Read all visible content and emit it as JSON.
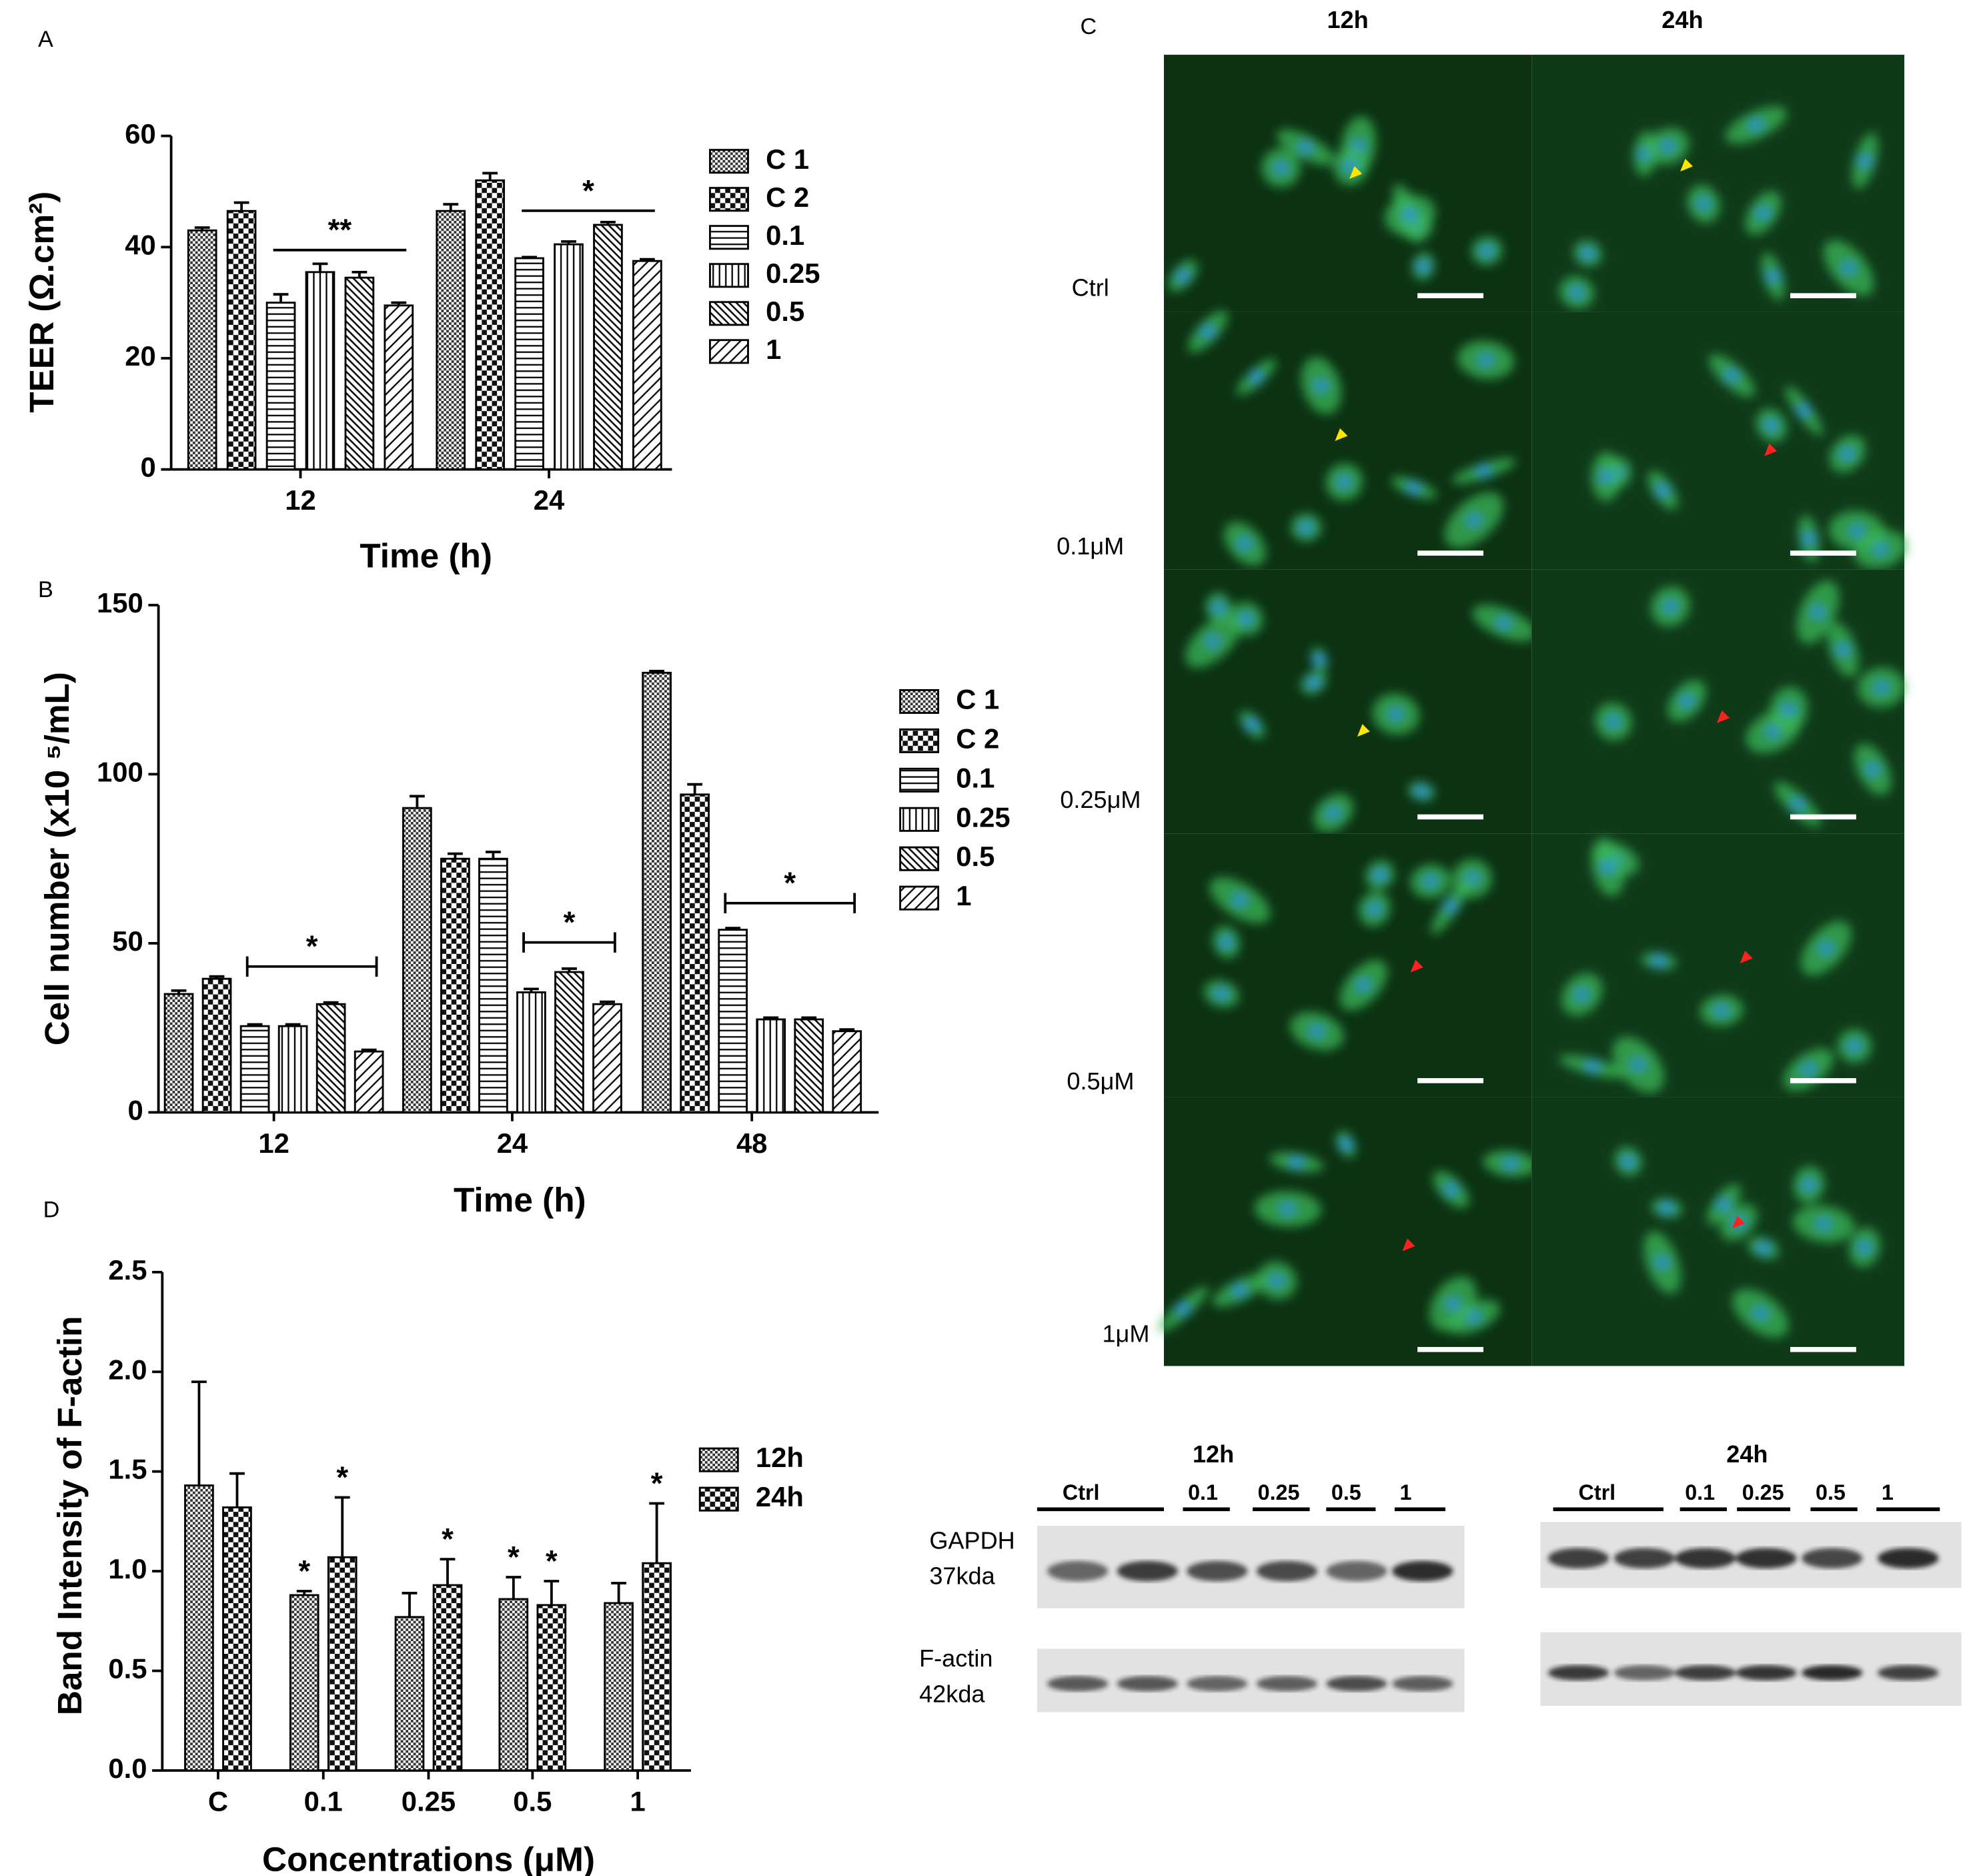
{
  "panel_labels": [
    "A",
    "B",
    "C",
    "D"
  ],
  "chart_data": [
    {
      "type": "bar",
      "xlabel": "Time (h)",
      "ylabel": "TEER (Ω.cm²)",
      "categories": [
        "12",
        "24"
      ],
      "series": [
        {
          "name": "C 1",
          "color": "#000000",
          "values": [
            43,
            46.5
          ],
          "errors": [
            0.5,
            1.2
          ]
        },
        {
          "name": "C 2",
          "color": "#000000",
          "values": [
            46.5,
            52
          ],
          "errors": [
            1.5,
            1.3
          ]
        },
        {
          "name": "0.1",
          "color": "#000000",
          "values": [
            30,
            38
          ],
          "errors": [
            1.5,
            0.2
          ]
        },
        {
          "name": "0.25",
          "color": "#000000",
          "values": [
            35.5,
            40.5
          ],
          "errors": [
            1.5,
            0.5
          ]
        },
        {
          "name": "0.5",
          "color": "#000000",
          "values": [
            34.5,
            44
          ],
          "errors": [
            1,
            0.5
          ]
        },
        {
          "name": "1",
          "color": "#000000",
          "values": [
            29.5,
            37.5
          ],
          "errors": [
            0.5,
            0.3
          ]
        }
      ],
      "group_annotations": [
        "**",
        "*"
      ],
      "ylim": [
        0,
        60
      ],
      "yticks": [
        0,
        20,
        40,
        60
      ]
    },
    {
      "type": "bar",
      "xlabel": "Time (h)",
      "ylabel": "Cell number (x10 ⁵/mL)",
      "categories": [
        "12",
        "24",
        "48"
      ],
      "series": [
        {
          "name": "C 1",
          "color": "#000000",
          "values": [
            35,
            90,
            130
          ],
          "errors": [
            1,
            3.5,
            0.5
          ]
        },
        {
          "name": "C 2",
          "color": "#000000",
          "values": [
            39.5,
            75,
            94
          ],
          "errors": [
            0.7,
            1.5,
            3
          ]
        },
        {
          "name": "0.1",
          "color": "#000000",
          "values": [
            25.5,
            75,
            54
          ],
          "errors": [
            0.5,
            2,
            0.5
          ]
        },
        {
          "name": "0.25",
          "color": "#000000",
          "values": [
            25.5,
            35.5,
            27.5
          ],
          "errors": [
            0.5,
            1,
            0.5
          ]
        },
        {
          "name": "0.5",
          "color": "#000000",
          "values": [
            32,
            41.5,
            27.5
          ],
          "errors": [
            0.5,
            1,
            0.5
          ]
        },
        {
          "name": "1",
          "color": "#000000",
          "values": [
            18,
            32,
            24
          ],
          "errors": [
            0.5,
            0.7,
            0.5
          ]
        }
      ],
      "group_annotations": [
        "*",
        "*",
        "*"
      ],
      "ylim": [
        0,
        150
      ],
      "yticks": [
        0,
        50,
        100,
        150
      ]
    },
    {
      "type": "bar",
      "xlabel": "Concentrations (μM)",
      "ylabel": "Band Intensity of F-actin",
      "categories": [
        "C",
        "0.1",
        "0.25",
        "0.5",
        "1"
      ],
      "series": [
        {
          "name": "12h",
          "color": "#000000",
          "values": [
            1.43,
            0.88,
            0.77,
            0.86,
            0.84
          ],
          "errors": [
            0.52,
            0.02,
            0.12,
            0.11,
            0.1
          ],
          "significance": [
            null,
            "*",
            null,
            "*",
            null
          ]
        },
        {
          "name": "24h",
          "color": "#000000",
          "values": [
            1.32,
            1.07,
            0.93,
            0.83,
            1.04
          ],
          "errors": [
            0.17,
            0.3,
            0.13,
            0.12,
            0.3
          ],
          "significance": [
            null,
            "*",
            "*",
            "*",
            "*"
          ]
        }
      ],
      "ylim": [
        0,
        2.5
      ],
      "yticks": [
        {
          "value": 0,
          "label": "0.0"
        },
        0.5,
        {
          "value": 1,
          "label": "1.0"
        },
        1.5,
        {
          "value": 2,
          "label": "2.0"
        },
        2.5
      ]
    }
  ],
  "micrographs": {
    "columns": [
      "12h",
      "24h"
    ],
    "rows": [
      "Ctrl",
      "0.1μM",
      "0.25μM",
      "0.5μM",
      "1μM"
    ]
  },
  "western_blot": {
    "groups": [
      {
        "title": "12h",
        "lanes": [
          "Ctrl",
          "0.1",
          "0.25",
          "0.5",
          "1"
        ]
      },
      {
        "title": "24h",
        "lanes": [
          "Ctrl",
          "0.1",
          "0.25",
          "0.5",
          "1"
        ]
      }
    ],
    "proteins": [
      {
        "name": "GAPDH",
        "size": "37kda"
      },
      {
        "name": "F-actin",
        "size": "42kda"
      }
    ]
  }
}
